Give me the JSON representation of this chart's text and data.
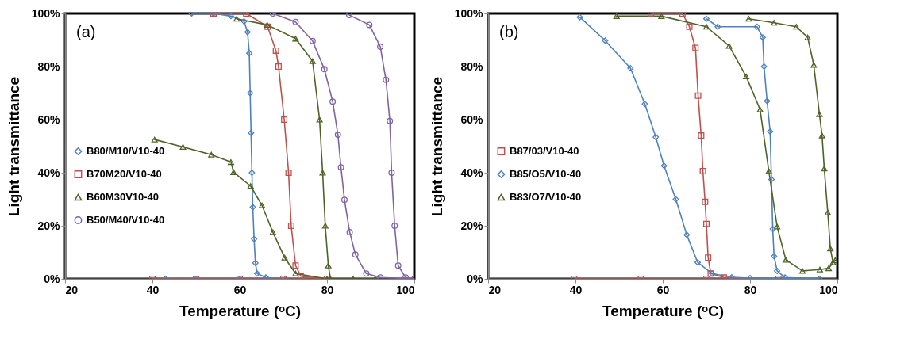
{
  "chart_data": [
    {
      "type": "line",
      "xlabel": "Temperature (ᵒC)",
      "ylabel": "Light transmittance",
      "annotations": [
        "(a)"
      ],
      "xlim": [
        20,
        100
      ],
      "ylim": [
        0,
        100
      ],
      "xticks": [
        20,
        40,
        60,
        80,
        100
      ],
      "yticks": [
        {
          "value": 0,
          "label": "0%"
        },
        {
          "value": 20,
          "label": "20%"
        },
        {
          "value": 40,
          "label": "40%"
        },
        {
          "value": 60,
          "label": "60%"
        },
        {
          "value": 80,
          "label": "80%"
        },
        {
          "value": 100,
          "label": "100%"
        }
      ],
      "legend": "left",
      "line_style": "solid",
      "series": [
        {
          "name": "B80/M10/V10-40",
          "color": "#4f81bd",
          "marker": "diamond",
          "x": [
            49,
            54,
            58,
            61,
            61.8,
            62.2,
            62.4,
            62.6,
            62.8,
            63,
            63.3,
            63.6,
            64,
            66,
            70.5,
            60,
            50,
            43
          ],
          "values": [
            100,
            100,
            99,
            97,
            93,
            85,
            70,
            55,
            40,
            27,
            15,
            6,
            2,
            0.5,
            0,
            0,
            0,
            0
          ]
        },
        {
          "name": "B70M20/V10-40",
          "color": "#c0504d",
          "marker": "square",
          "x": [
            54,
            61.5,
            66.4,
            68.3,
            68.9,
            70.2,
            71.2,
            71.8,
            72.8,
            74,
            80,
            70,
            60,
            50,
            40
          ],
          "values": [
            100,
            100,
            95,
            86,
            80,
            60,
            40,
            20,
            5,
            1,
            0,
            0,
            0,
            0,
            0
          ]
        },
        {
          "name": "B60M30V10-40",
          "color": "#4f6228",
          "marker": "triangle",
          "x": [
            59.3,
            66.3,
            72.8,
            76.7,
            78.3,
            79,
            79.6,
            80.3,
            80.8,
            86,
            91,
            80,
            72.8,
            70.3,
            67.6,
            65.1,
            62.5,
            58.6,
            58,
            53.5,
            47,
            40.5
          ],
          "values": [
            98,
            95.7,
            90.5,
            82,
            60,
            40,
            20,
            5,
            0,
            0,
            0,
            0,
            2,
            8,
            17.6,
            27.7,
            35,
            40.2,
            44,
            46.8,
            49.7,
            52.5
          ]
        },
        {
          "name": "B50/M40/V10-40",
          "color": "#8064a2",
          "marker": "circle",
          "x": [
            67.6,
            72.8,
            76.7,
            79.4,
            81.3,
            82.5,
            83.2,
            84,
            85.2,
            86.5,
            89,
            92.2,
            100,
            98,
            96.3,
            95.5,
            94.8,
            94.4,
            93.5,
            92.2,
            89.7,
            85.1
          ],
          "values": [
            100,
            96.8,
            89.6,
            79,
            66.8,
            54.3,
            42,
            29.8,
            17.6,
            9.2,
            2,
            0.5,
            0,
            0.5,
            5,
            20,
            40,
            59.5,
            75,
            87.5,
            95.7,
            99.4
          ]
        }
      ]
    },
    {
      "type": "line",
      "xlabel": "Temperature (ᵒC)",
      "ylabel": "Light transmittance",
      "annotations": [
        "(b)"
      ],
      "xlim": [
        20,
        100
      ],
      "ylim": [
        0,
        100
      ],
      "xticks": [
        20,
        40,
        60,
        80,
        100
      ],
      "yticks": [
        {
          "value": 0,
          "label": "0%"
        },
        {
          "value": 20,
          "label": "20%"
        },
        {
          "value": 40,
          "label": "40%"
        },
        {
          "value": 60,
          "label": "60%"
        },
        {
          "value": 80,
          "label": "80%"
        },
        {
          "value": 100,
          "label": "100%"
        }
      ],
      "legend": "left",
      "line_style": "solid",
      "series": [
        {
          "name": "B87/03/V10-40",
          "color": "#c0504d",
          "marker": "square",
          "x": [
            57.3,
            64.5,
            66.1,
            67.5,
            68.1,
            68.8,
            69.2,
            69.7,
            70,
            70.4,
            71,
            74,
            86.5,
            70,
            55,
            39.7
          ],
          "values": [
            100,
            100,
            95,
            87,
            69,
            54,
            40.6,
            29,
            20.7,
            8,
            2,
            0.5,
            0,
            0,
            0,
            0
          ]
        },
        {
          "name": "B85/O5/V10-40",
          "color": "#4f81bd",
          "marker": "diamond",
          "x": [
            70,
            72.6,
            81.6,
            82.9,
            83.2,
            83.9,
            84.6,
            84.9,
            85.2,
            85.5,
            86.2,
            88,
            95.9,
            80,
            75.8,
            71.3,
            68,
            65.5,
            63,
            60.3,
            58.4,
            55.9,
            52.6,
            46.8,
            41
          ],
          "values": [
            98,
            95,
            95,
            91,
            80,
            67,
            55.5,
            37.5,
            18.8,
            8.5,
            3,
            0.5,
            0,
            0.3,
            0.6,
            2,
            6.2,
            16.6,
            30,
            42.6,
            53.4,
            65.9,
            79.4,
            89.8,
            98.6
          ]
        },
        {
          "name": "B83/O7/V10-40",
          "color": "#4f6228",
          "marker": "triangle",
          "x": [
            79.7,
            85.5,
            90.6,
            93.2,
            94.6,
            95.9,
            96.5,
            97,
            97.8,
            98.4,
            99,
            99.5,
            98,
            96,
            92,
            88.2,
            86.2,
            84.3,
            82.3,
            79.1,
            75.2,
            70,
            59.7,
            49.4
          ],
          "values": [
            98,
            96.5,
            95,
            91,
            80.6,
            62,
            54,
            41.6,
            25,
            11.4,
            6.2,
            7,
            4,
            3.5,
            3,
            7.2,
            19.7,
            40.6,
            63.8,
            76.3,
            87.8,
            95,
            99,
            99
          ]
        }
      ]
    }
  ]
}
